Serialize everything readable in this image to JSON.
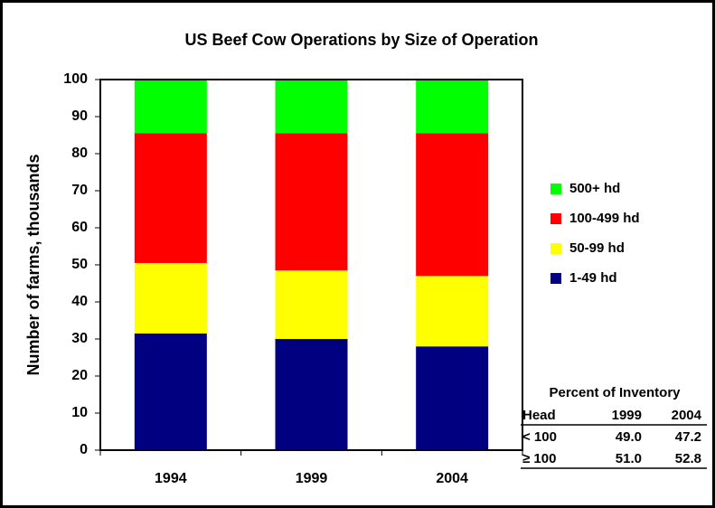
{
  "chart_data": {
    "type": "stacked-bar",
    "title": "US Beef Cow Operations by Size of Operation",
    "y_label": "Number of farms, thousands",
    "categories": [
      "1994",
      "1999",
      "2004"
    ],
    "series": [
      {
        "name": "1-49 hd",
        "color": "#000080",
        "values": [
          31.5,
          30,
          28
        ]
      },
      {
        "name": "50-99 hd",
        "color": "#ffff00",
        "values": [
          19,
          18.5,
          19
        ]
      },
      {
        "name": "100-499 hd",
        "color": "#ff0000",
        "values": [
          35,
          37,
          38.5
        ]
      },
      {
        "name": "500+ hd",
        "color": "#00ff00",
        "values": [
          14.5,
          14.5,
          14.5
        ]
      }
    ],
    "ylim": [
      0,
      100
    ],
    "yticks": [
      0,
      10,
      20,
      30,
      40,
      50,
      60,
      70,
      80,
      90,
      100
    ],
    "grid": false,
    "legend": "right",
    "inventory_table": {
      "title": "Percent of Inventory",
      "columns": [
        "Head",
        "1999",
        "2004"
      ],
      "rows": [
        [
          "< 100",
          "49.0",
          "47.2"
        ],
        [
          "≥ 100",
          "51.0",
          "52.8"
        ]
      ]
    }
  }
}
